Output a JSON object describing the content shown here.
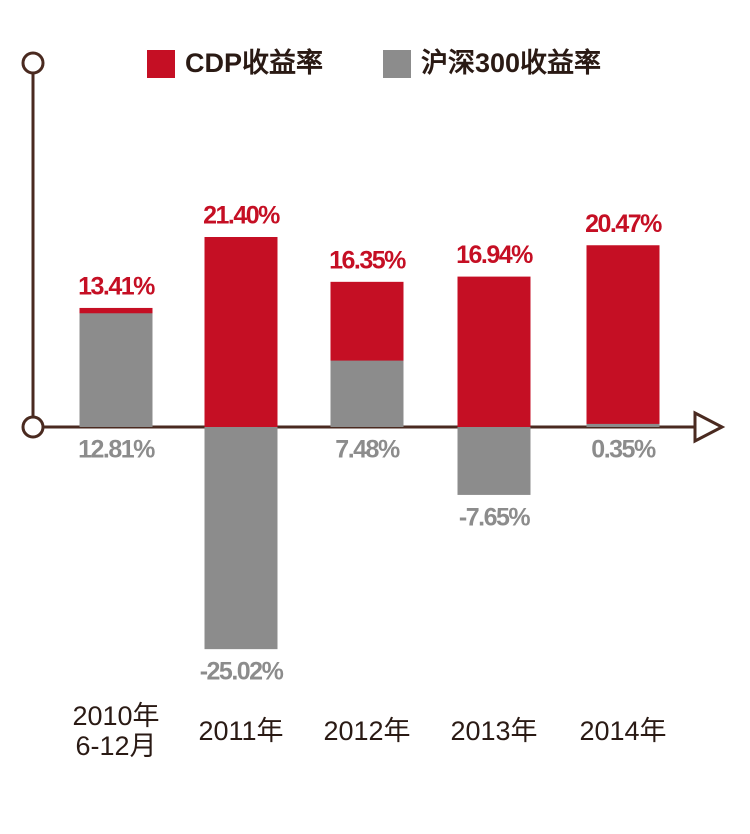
{
  "chart_data": {
    "type": "bar",
    "categories": [
      "2010年\n6-12月",
      "2011年",
      "2012年",
      "2013年",
      "2014年"
    ],
    "series": [
      {
        "name": "CDP收益率",
        "color": "#c50f24",
        "values": [
          13.41,
          21.4,
          16.35,
          16.94,
          20.47
        ],
        "value_labels": [
          "13.41%",
          "21.40%",
          "16.35%",
          "16.94%",
          "20.47%"
        ]
      },
      {
        "name": "沪深300收益率",
        "color": "#8c8c8c",
        "values": [
          12.81,
          -25.02,
          7.48,
          -7.65,
          0.35
        ],
        "value_labels": [
          "12.81%",
          "-25.02%",
          "7.48%",
          "-7.65%",
          "0.35%"
        ]
      }
    ],
    "overlap": true
  }
}
